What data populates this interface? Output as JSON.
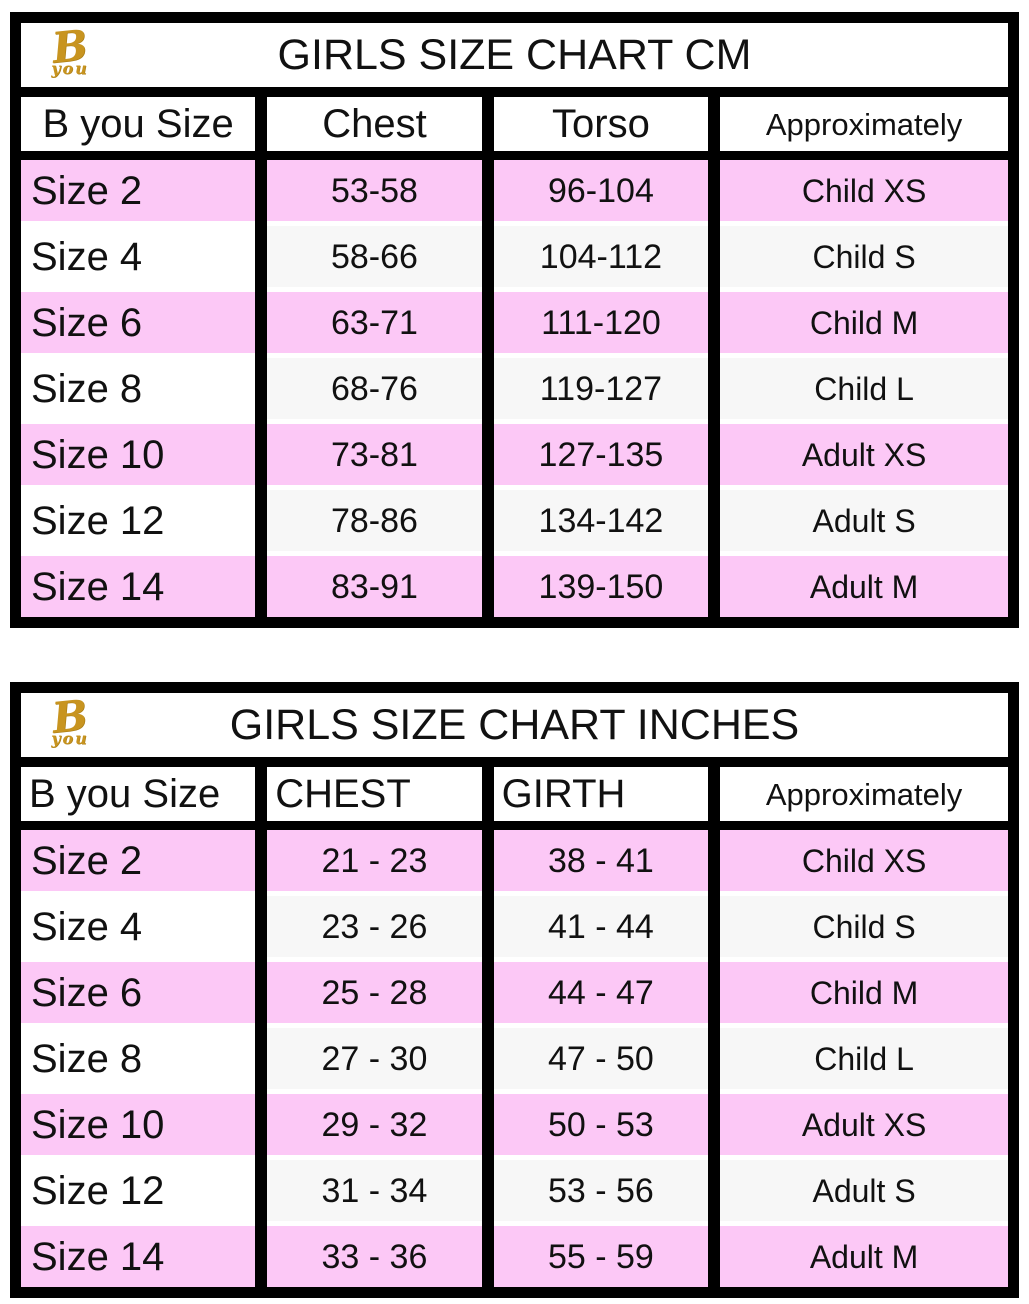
{
  "colors": {
    "row_pink": "#fcc8f6",
    "row_offwhite": "#f7f7f7",
    "grid_black": "#000000",
    "logo_gold": "#c8941f",
    "background": "#ffffff"
  },
  "logo": {
    "b": "B",
    "you": "you"
  },
  "tables": [
    {
      "title": "GIRLS SIZE CHART CM",
      "headers": [
        "B you Size",
        "Chest",
        "Torso",
        "Approximately"
      ],
      "rows": [
        [
          "Size 2",
          "53-58",
          "96-104",
          "Child XS"
        ],
        [
          "Size 4",
          "58-66",
          "104-112",
          "Child S"
        ],
        [
          "Size 6",
          "63-71",
          "111-120",
          "Child M"
        ],
        [
          "Size 8",
          "68-76",
          "119-127",
          "Child L"
        ],
        [
          "Size 10",
          "73-81",
          "127-135",
          "Adult XS"
        ],
        [
          "Size 12",
          "78-86",
          "134-142",
          "Adult S"
        ],
        [
          "Size 14",
          "83-91",
          "139-150",
          "Adult M"
        ]
      ]
    },
    {
      "title": "GIRLS SIZE CHART INCHES",
      "headers": [
        "B you Size",
        "CHEST",
        "GIRTH",
        "Approximately"
      ],
      "rows": [
        [
          "Size 2",
          "21 - 23",
          "38 - 41",
          "Child XS"
        ],
        [
          "Size 4",
          "23 - 26",
          "41 - 44",
          "Child S"
        ],
        [
          "Size 6",
          "25 - 28",
          "44 - 47",
          "Child M"
        ],
        [
          "Size 8",
          "27 - 30",
          "47 - 50",
          "Child L"
        ],
        [
          "Size 10",
          "29 - 32",
          "50 - 53",
          "Adult XS"
        ],
        [
          "Size 12",
          "31 - 34",
          "53 - 56",
          "Adult S"
        ],
        [
          "Size 14",
          "33 - 36",
          "55 - 59",
          "Adult M"
        ]
      ]
    }
  ],
  "chart_data": [
    {
      "type": "table",
      "title": "GIRLS SIZE CHART CM",
      "columns": [
        "B you Size",
        "Chest",
        "Torso",
        "Approximately"
      ],
      "rows": [
        [
          "Size 2",
          "53-58",
          "96-104",
          "Child XS"
        ],
        [
          "Size 4",
          "58-66",
          "104-112",
          "Child S"
        ],
        [
          "Size 6",
          "63-71",
          "111-120",
          "Child M"
        ],
        [
          "Size 8",
          "68-76",
          "119-127",
          "Child L"
        ],
        [
          "Size 10",
          "73-81",
          "127-135",
          "Adult XS"
        ],
        [
          "Size 12",
          "78-86",
          "134-142",
          "Adult S"
        ],
        [
          "Size 14",
          "83-91",
          "139-150",
          "Adult M"
        ]
      ]
    },
    {
      "type": "table",
      "title": "GIRLS SIZE CHART INCHES",
      "columns": [
        "B you Size",
        "CHEST",
        "GIRTH",
        "Approximately"
      ],
      "rows": [
        [
          "Size 2",
          "21 - 23",
          "38 - 41",
          "Child XS"
        ],
        [
          "Size 4",
          "23 - 26",
          "41 - 44",
          "Child S"
        ],
        [
          "Size 6",
          "25 - 28",
          "44 - 47",
          "Child M"
        ],
        [
          "Size 8",
          "27 - 30",
          "47 - 50",
          "Child L"
        ],
        [
          "Size 10",
          "29 - 32",
          "50 - 53",
          "Adult XS"
        ],
        [
          "Size 12",
          "31 - 34",
          "53 - 56",
          "Adult S"
        ],
        [
          "Size 14",
          "33 - 36",
          "55 - 59",
          "Adult M"
        ]
      ]
    }
  ]
}
